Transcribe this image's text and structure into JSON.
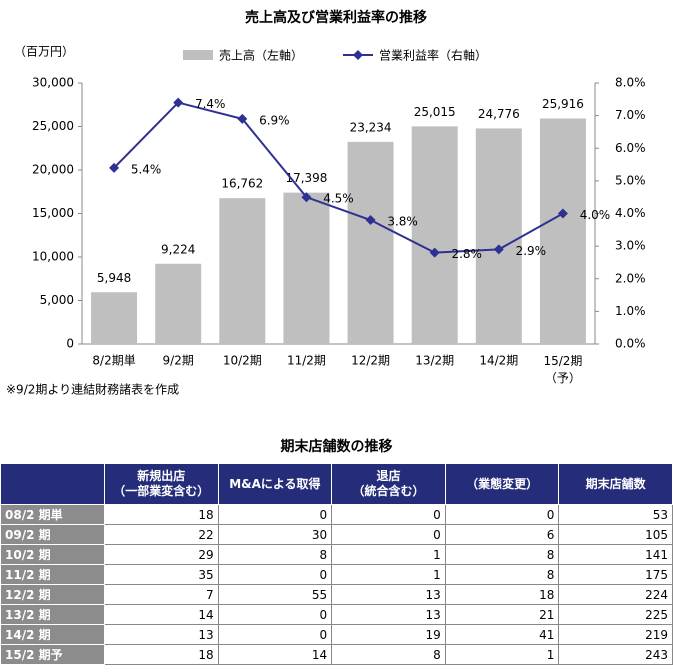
{
  "chart_data": {
    "type": "bar",
    "title": "売上高及び営業利益率の推移",
    "y_label": "（百万円）",
    "categories": [
      "8/2期単",
      "9/2期",
      "10/2期",
      "11/2期",
      "12/2期",
      "13/2期",
      "14/2期",
      "15/2期\n（予）"
    ],
    "series": [
      {
        "name": "売上高（左軸）",
        "type": "bar",
        "color": "#bfbfbf",
        "values": [
          5948,
          9224,
          16762,
          17398,
          23234,
          25015,
          24776,
          25916
        ],
        "value_labels": [
          "5,948",
          "9,224",
          "16,762",
          "17,398",
          "23,234",
          "25,015",
          "24,776",
          "25,916"
        ]
      },
      {
        "name": "営業利益率（右軸）",
        "type": "line",
        "axis": "y2",
        "color": "#2e3192",
        "values": [
          5.4,
          7.4,
          6.9,
          4.5,
          3.8,
          2.8,
          2.9,
          4.0
        ],
        "value_labels": [
          "5.4%",
          "7.4%",
          "6.9%",
          "4.5%",
          "3.8%",
          "2.8%",
          "2.9%",
          "4.0%"
        ]
      }
    ],
    "ylim": [
      0,
      30000
    ],
    "yticks": [
      0,
      {
        "value": 5000,
        "label": "5,000"
      },
      {
        "value": 10000,
        "label": "10,000"
      },
      {
        "value": 15000,
        "label": "15,000"
      },
      {
        "value": 20000,
        "label": "20,000"
      },
      {
        "value": 25000,
        "label": "25,000"
      },
      {
        "value": 30000,
        "label": "30,000"
      }
    ],
    "y2lim": [
      0,
      8
    ],
    "y2ticks": [
      {
        "value": 0,
        "label": "0.0%"
      },
      {
        "value": 1,
        "label": "1.0%"
      },
      {
        "value": 2,
        "label": "2.0%"
      },
      {
        "value": 3,
        "label": "3.0%"
      },
      {
        "value": 4,
        "label": "4.0%"
      },
      {
        "value": 5,
        "label": "5.0%"
      },
      {
        "value": 6,
        "label": "6.0%"
      },
      {
        "value": 7,
        "label": "7.0%"
      },
      {
        "value": 8,
        "label": "8.0%"
      }
    ],
    "note": "※9/2期より連結財務諸表を作成"
  },
  "table": {
    "title": "期末店舗数の推移",
    "headers": [
      "新規出店\n（一部業変含む）",
      "M&Aによる取得",
      "退店\n（統合含む）",
      "（業態変更）",
      "期末店舗数"
    ],
    "rows": [
      {
        "label": "08/2 期単",
        "values": [
          18,
          0,
          0,
          0,
          53
        ]
      },
      {
        "label": "09/2 期",
        "values": [
          22,
          30,
          0,
          6,
          105
        ]
      },
      {
        "label": "10/2 期",
        "values": [
          29,
          8,
          1,
          8,
          141
        ]
      },
      {
        "label": "11/2 期",
        "values": [
          35,
          0,
          1,
          8,
          175
        ]
      },
      {
        "label": "12/2 期",
        "values": [
          7,
          55,
          13,
          18,
          224
        ]
      },
      {
        "label": "13/2 期",
        "values": [
          14,
          0,
          13,
          21,
          225
        ]
      },
      {
        "label": "14/2 期",
        "values": [
          13,
          0,
          19,
          41,
          219
        ]
      },
      {
        "label": "15/2 期予",
        "values": [
          18,
          14,
          8,
          1,
          243
        ]
      }
    ]
  }
}
